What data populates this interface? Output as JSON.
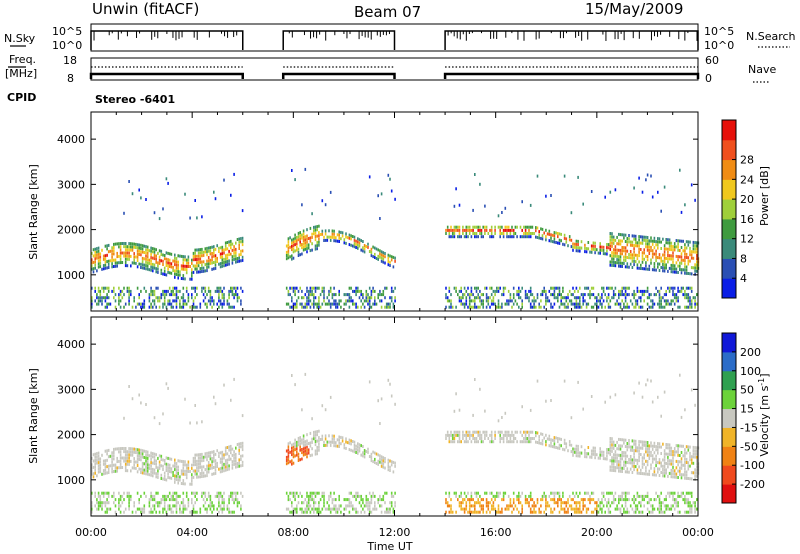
{
  "header": {
    "radar": "Unwin (fitACF)",
    "beam": "Beam 07",
    "date": "15/May/2009"
  },
  "panels": {
    "nsky_label": "N.Sky",
    "nsky_ticks": [
      "10^5",
      "10^0"
    ],
    "nsearch_label": "N.Search",
    "freq_label_top": "Freq.",
    "freq_label_bottom": "[MHz]",
    "freq_ticks": [
      "18",
      "8"
    ],
    "nave_ticks": [
      "60",
      "0"
    ],
    "nave_label": "Nave",
    "cpid_label": "CPID",
    "stereo_label": "Stereo -6401"
  },
  "colors": {
    "power": [
      "#0a1ee6",
      "#2a4fb4",
      "#3a8a7a",
      "#3f9b3f",
      "#9fcf3a",
      "#f0c81e",
      "#f08c14",
      "#f0501e",
      "#e6100a"
    ],
    "velocity": [
      "#1018d8",
      "#2b6cc8",
      "#2fa050",
      "#6cd23a",
      "#c8c8c0",
      "#f0b428",
      "#f08214",
      "#f04a1e",
      "#e01010"
    ]
  },
  "chart_data": [
    {
      "type": "heatmap",
      "name": "power",
      "xlabel": "",
      "ylabel": "Slant Range [km]",
      "x_ticks": [
        "00:00",
        "04:00",
        "08:00",
        "12:00",
        "16:00",
        "20:00",
        "00:00"
      ],
      "y_ticks": [
        1000,
        2000,
        3000,
        4000
      ],
      "ylim": [
        200,
        4600
      ],
      "colorbar_label": "Power [dB]",
      "colorbar_ticks": [
        4,
        8,
        12,
        16,
        20,
        24,
        28
      ],
      "data_gaps_ut": [
        [
          "06:00",
          "07:40"
        ],
        [
          "12:00",
          "14:00"
        ]
      ]
    },
    {
      "type": "heatmap",
      "name": "velocity",
      "xlabel": "Time UT",
      "ylabel": "Slant Range [km]",
      "x_ticks": [
        "00:00",
        "04:00",
        "08:00",
        "12:00",
        "16:00",
        "20:00",
        "00:00"
      ],
      "y_ticks": [
        1000,
        2000,
        3000,
        4000
      ],
      "ylim": [
        200,
        4600
      ],
      "colorbar_label": "Velocity [m s",
      "colorbar_label_exp": "-1",
      "colorbar_label_end": "]",
      "colorbar_ticks": [
        200,
        100,
        50,
        15,
        -15,
        -50,
        -100,
        -200
      ],
      "data_gaps_ut": [
        [
          "06:00",
          "07:40"
        ],
        [
          "12:00",
          "14:00"
        ]
      ]
    }
  ]
}
